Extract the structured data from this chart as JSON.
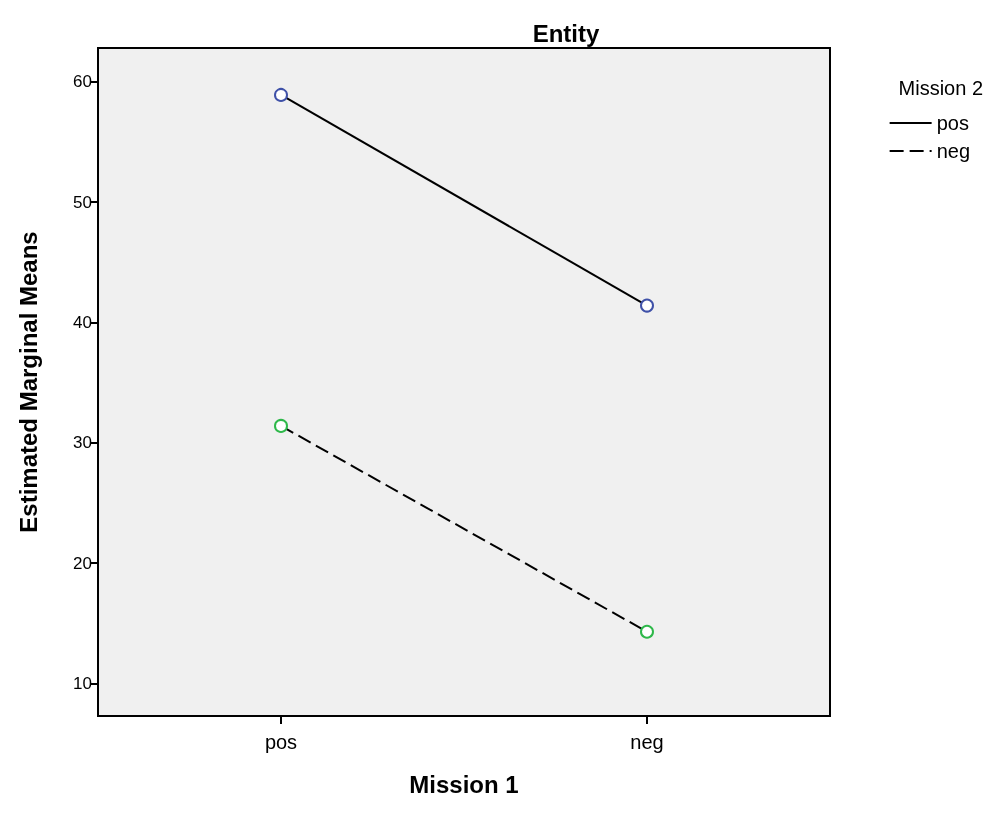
{
  "chart_data": {
    "type": "line",
    "title": "Entity",
    "xlabel": "Mission 1",
    "ylabel": "Estimated Marginal Means",
    "legend_title": "Mission 2",
    "categories": [
      "pos",
      "neg"
    ],
    "series": [
      {
        "name": "pos",
        "color": "#000000",
        "colors": [
          "#3f51a8",
          "#3f51a8"
        ],
        "line_style": "solid",
        "values": [
          58.9,
          41.4
        ]
      },
      {
        "name": "neg",
        "color": "#000000",
        "colors": [
          "#2eb84a",
          "#2eb84a"
        ],
        "line_style": "dashed",
        "values": [
          31.4,
          14.3
        ]
      }
    ],
    "ylim": [
      7.3,
      62.8
    ],
    "yticks": [
      10,
      20,
      30,
      40,
      50,
      60
    ],
    "grid": false,
    "legend": "top right",
    "marker": "circle"
  }
}
